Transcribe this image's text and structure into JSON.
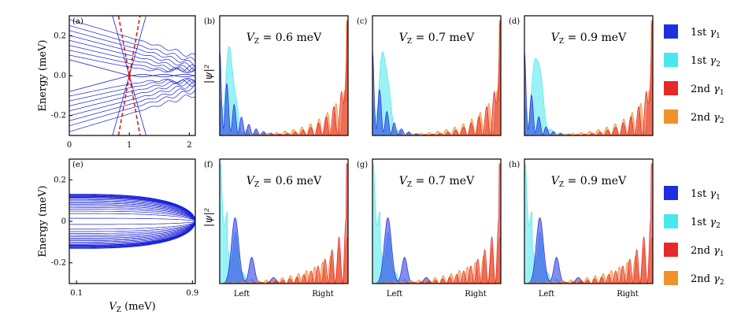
{
  "chart_data": [
    {
      "id": "a",
      "panel_label": "(a)",
      "type": "line",
      "xlabel": "",
      "ylabel": "Energy (meV)",
      "xlim": [
        0,
        2.1
      ],
      "ylim": [
        -0.3,
        0.3
      ],
      "xticks": [
        "0",
        "1",
        "2"
      ],
      "yticks": [
        "0.2",
        "0.0",
        "-0.2"
      ],
      "series_note": "band energies vs Zeeman field; gap closes at V_Z = 1",
      "critical_vz": 1.0
    },
    {
      "id": "e",
      "panel_label": "(e)",
      "type": "line",
      "xlabel": "V_Z (meV)",
      "ylabel": "Energy (meV)",
      "xlim": [
        0.05,
        0.92
      ],
      "ylim": [
        -0.3,
        0.3
      ],
      "xticks": [
        "0.1",
        "0.9"
      ],
      "yticks": [
        "0.2",
        "0",
        "-0.2"
      ]
    },
    {
      "id": "b",
      "panel_label": "(b)",
      "type": "area",
      "ylabel": "|ψ|²",
      "annotation": "V_Z = 0.6 meV",
      "series": [
        {
          "name": "1st γ1",
          "color": "#1f2ee0"
        },
        {
          "name": "1st γ2",
          "color": "#48e8ee"
        },
        {
          "name": "2nd γ1",
          "color": "#e82828"
        },
        {
          "name": "2nd γ2",
          "color": "#f0922c"
        }
      ]
    },
    {
      "id": "c",
      "panel_label": "(c)",
      "type": "area",
      "annotation": "V_Z = 0.7 meV"
    },
    {
      "id": "d",
      "panel_label": "(d)",
      "type": "area",
      "annotation": "V_Z = 0.9 meV"
    },
    {
      "id": "f",
      "panel_label": "(f)",
      "type": "area",
      "ylabel": "|ψ|²",
      "annotation": "V_Z = 0.6 meV",
      "xticks": [
        "Left",
        "Right"
      ]
    },
    {
      "id": "g",
      "panel_label": "(g)",
      "type": "area",
      "annotation": "V_Z = 0.7 meV",
      "xticks": [
        "Left",
        "Right"
      ]
    },
    {
      "id": "h",
      "panel_label": "(h)",
      "type": "area",
      "annotation": "V_Z = 0.9 meV",
      "xticks": [
        "Left",
        "Right"
      ]
    }
  ],
  "legend": {
    "items": [
      {
        "label": "1st",
        "sym": "γ",
        "sub": "1",
        "color": "#1f2ee0"
      },
      {
        "label": "1st",
        "sym": "γ",
        "sub": "2",
        "color": "#48e8ee"
      },
      {
        "label": "2nd",
        "sym": "γ",
        "sub": "1",
        "color": "#e82828"
      },
      {
        "label": "2nd",
        "sym": "γ",
        "sub": "2",
        "color": "#f0922c"
      }
    ]
  },
  "colors": {
    "band": "#1a22d8",
    "critical": "#d81a1a"
  }
}
